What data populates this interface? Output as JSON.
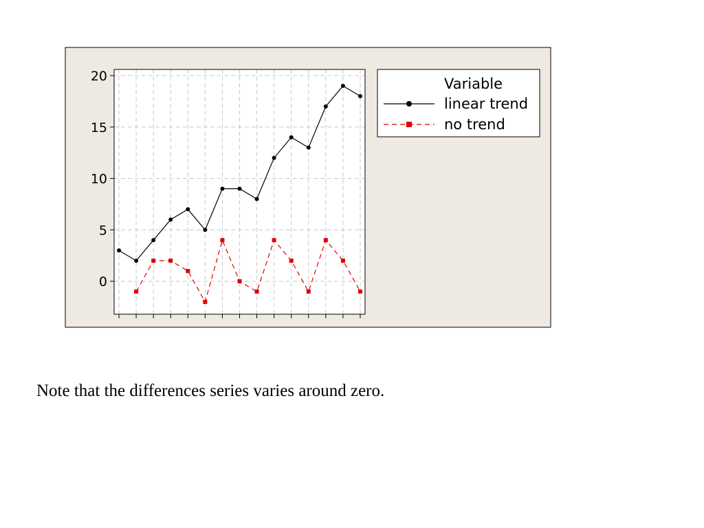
{
  "colors": {
    "panel_background": "#eeeae1",
    "plot_background": "#ffffff",
    "grid": "#c8c8c8",
    "series_linear": "#000000",
    "series_notrend": "#e00000"
  },
  "chart_data": {
    "type": "line",
    "title": "",
    "xlabel": "",
    "ylabel": "",
    "ylim": [
      -3.2,
      20.6
    ],
    "yticks": [
      0,
      5,
      10,
      15,
      20
    ],
    "x": [
      1,
      2,
      3,
      4,
      5,
      6,
      7,
      8,
      9,
      10,
      11,
      12,
      13,
      14,
      15
    ],
    "xlim": [
      0.72,
      15.28
    ],
    "grid": true,
    "legend": {
      "title": "Variable",
      "placement": "right-top-outside"
    },
    "series": [
      {
        "name": "linear trend",
        "style": "solid",
        "marker": "circle",
        "x": [
          1,
          2,
          3,
          4,
          5,
          6,
          7,
          8,
          9,
          10,
          11,
          12,
          13,
          14,
          15
        ],
        "values": [
          3,
          2,
          4,
          6,
          7,
          5,
          9,
          9,
          8,
          12,
          14,
          13,
          17,
          19,
          18
        ]
      },
      {
        "name": "no trend",
        "style": "dashed",
        "marker": "square",
        "x": [
          2,
          3,
          4,
          5,
          6,
          7,
          8,
          9,
          10,
          11,
          12,
          13,
          14,
          15
        ],
        "values": [
          -1,
          2,
          2,
          1,
          -2,
          4,
          0,
          -1,
          4,
          2,
          -1,
          4,
          2,
          -1
        ]
      }
    ]
  },
  "note": "Note that the differences series varies around zero."
}
